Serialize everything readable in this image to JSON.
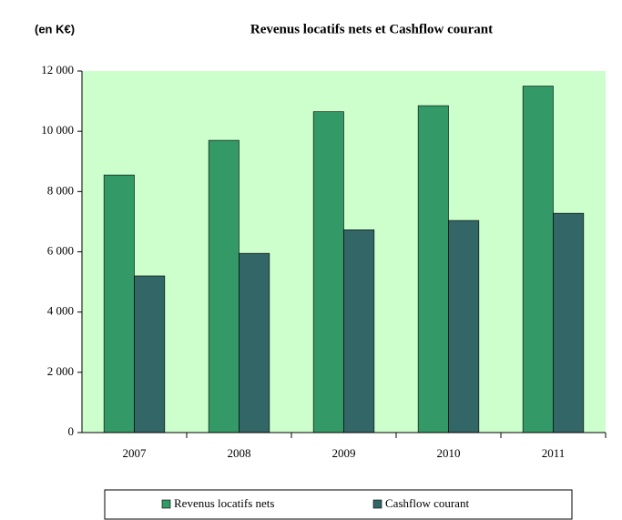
{
  "chart_data": {
    "type": "bar",
    "title": "Revenus locatifs nets et Cashflow courant",
    "y_unit_label": "(en K€)",
    "categories": [
      "2007",
      "2008",
      "2009",
      "2010",
      "2011"
    ],
    "series": [
      {
        "name": "Revenus locatifs nets",
        "color": "#339966",
        "values": [
          8550,
          9700,
          10650,
          10850,
          11500
        ]
      },
      {
        "name": "Cashflow courant",
        "color": "#336666",
        "values": [
          5200,
          5950,
          6730,
          7040,
          7280
        ]
      }
    ],
    "ylim": [
      0,
      12000
    ],
    "yticks": [
      0,
      {
        "value": 2000,
        "label": "2 000"
      },
      {
        "value": 4000,
        "label": "4 000"
      },
      {
        "value": 6000,
        "label": "6 000"
      },
      {
        "value": 8000,
        "label": "8 000"
      },
      {
        "value": 10000,
        "label": "10 000"
      },
      {
        "value": 12000,
        "label": "12 000"
      }
    ],
    "plot_background": "#ccffcc",
    "legend": "bottom"
  }
}
